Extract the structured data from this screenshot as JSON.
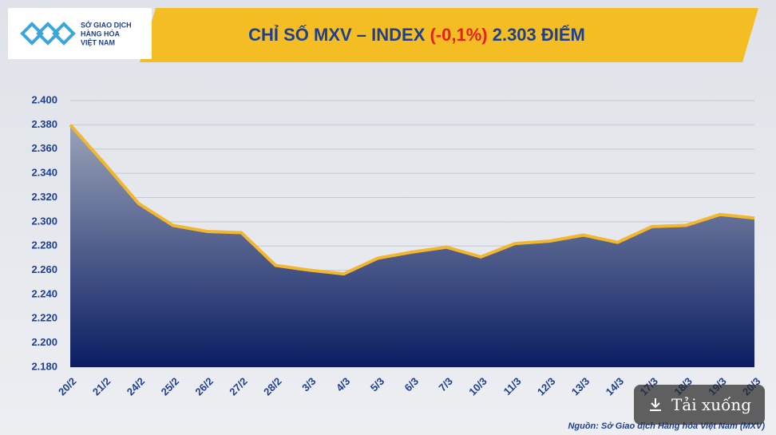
{
  "logo": {
    "lines": [
      "SỞ GIAO DỊCH",
      "HÀNG HÓA",
      "VIỆT NAM"
    ]
  },
  "chart_data": {
    "type": "area",
    "title_parts": [
      "CHỈ SỐ MXV – INDEX ",
      "(-0,1%)",
      " 2.303 ĐIỂM"
    ],
    "title_colors": [
      "#1f3f8f",
      "#e8201c",
      "#1f3f8f"
    ],
    "categories": [
      "20/2",
      "21/2",
      "24/2",
      "25/2",
      "26/2",
      "27/2",
      "28/2",
      "3/3",
      "4/3",
      "5/3",
      "6/3",
      "7/3",
      "10/3",
      "11/3",
      "12/3",
      "13/3",
      "14/3",
      "17/3",
      "18/3",
      "19/3",
      "20/3"
    ],
    "values": [
      2380,
      2348,
      2315,
      2297,
      2292,
      2291,
      2264,
      2260,
      2257,
      2270,
      2275,
      2279,
      2271,
      2282,
      2284,
      2289,
      2283,
      2296,
      2297,
      2306,
      2303
    ],
    "color": "#f3b72d",
    "fill_colors": [
      "#9aa3b8",
      "#0b1d63"
    ],
    "ylim": [
      2180,
      2400
    ],
    "yticks": [
      {
        "value": 2180,
        "label": "2.180"
      },
      {
        "value": 2200,
        "label": "2.200"
      },
      {
        "value": 2220,
        "label": "2.220"
      },
      {
        "value": 2240,
        "label": "2.240"
      },
      {
        "value": 2260,
        "label": "2.260"
      },
      {
        "value": 2280,
        "label": "2.280"
      },
      {
        "value": 2300,
        "label": "2.300"
      },
      {
        "value": 2320,
        "label": "2.320"
      },
      {
        "value": 2340,
        "label": "2.340"
      },
      {
        "value": 2360,
        "label": "2.360"
      },
      {
        "value": 2380,
        "label": "2.380"
      },
      {
        "value": 2400,
        "label": "2.400"
      }
    ],
    "grid": true,
    "source": "Nguồn: Sở Giao dịch Hàng hóa Việt Nam (MXV)"
  },
  "download_button": "Tải xuống"
}
